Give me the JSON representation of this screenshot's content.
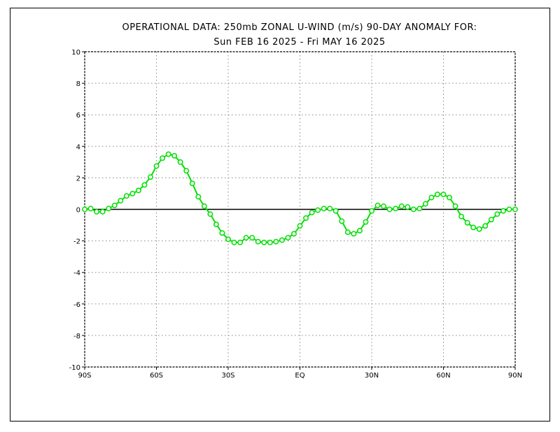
{
  "chart_data": {
    "type": "line",
    "title": "OPERATIONAL DATA: 250mb ZONAL U-WIND (m/s)  90-DAY ANOMALY FOR:",
    "subtitle": "Sun FEB 16 2025 - Fri MAY 16 2025",
    "xlabel": "",
    "ylabel": "",
    "xlim": [
      -90,
      90
    ],
    "ylim": [
      -10,
      10
    ],
    "x_ticks": [
      -90,
      -60,
      -30,
      0,
      30,
      60,
      90
    ],
    "x_tick_labels": [
      "90S",
      "60S",
      "30S",
      "EQ",
      "30N",
      "60N",
      "90N"
    ],
    "y_ticks": [
      -10,
      -8,
      -6,
      -4,
      -2,
      0,
      2,
      4,
      6,
      8,
      10
    ],
    "y_tick_labels": [
      "-10",
      "-8",
      "-6",
      "-4",
      "-2",
      "0",
      "2",
      "4",
      "6",
      "8",
      "10"
    ],
    "grid": true,
    "zero_line": true,
    "series": [
      {
        "color": "#00e000",
        "marker": "open-circle",
        "x": [
          -90,
          -87.5,
          -85,
          -82.5,
          -80,
          -77.5,
          -75,
          -72.5,
          -70,
          -67.5,
          -65,
          -62.5,
          -60,
          -57.5,
          -55,
          -52.5,
          -50,
          -47.5,
          -45,
          -42.5,
          -40,
          -37.5,
          -35,
          -32.5,
          -30,
          -27.5,
          -25,
          -22.5,
          -20,
          -17.5,
          -15,
          -12.5,
          -10,
          -7.5,
          -5,
          -2.5,
          0,
          2.5,
          5,
          7.5,
          10,
          12.5,
          15,
          17.5,
          20,
          22.5,
          25,
          27.5,
          30,
          32.5,
          35,
          37.5,
          40,
          42.5,
          45,
          47.5,
          50,
          52.5,
          55,
          57.5,
          60,
          62.5,
          65,
          67.5,
          70,
          72.5,
          75,
          77.5,
          80,
          82.5,
          85,
          87.5,
          90
        ],
        "values": [
          0.0,
          0.05,
          -0.15,
          -0.15,
          0.05,
          0.25,
          0.55,
          0.85,
          1.0,
          1.2,
          1.55,
          2.05,
          2.75,
          3.25,
          3.5,
          3.4,
          3.0,
          2.45,
          1.65,
          0.8,
          0.2,
          -0.3,
          -0.95,
          -1.5,
          -1.9,
          -2.1,
          -2.1,
          -1.8,
          -1.8,
          -2.05,
          -2.1,
          -2.1,
          -2.05,
          -1.95,
          -1.8,
          -1.55,
          -1.05,
          -0.55,
          -0.2,
          -0.05,
          0.05,
          0.05,
          -0.1,
          -0.75,
          -1.45,
          -1.55,
          -1.35,
          -0.8,
          -0.1,
          0.25,
          0.2,
          0.0,
          0.05,
          0.2,
          0.15,
          0.0,
          0.05,
          0.35,
          0.75,
          0.95,
          0.95,
          0.75,
          0.2,
          -0.45,
          -0.85,
          -1.15,
          -1.25,
          -1.05,
          -0.65,
          -0.3,
          -0.1,
          0.0,
          0.0
        ]
      }
    ]
  }
}
